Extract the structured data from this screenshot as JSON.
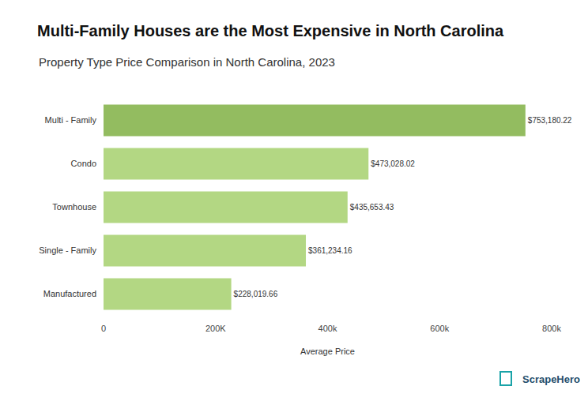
{
  "chart_data": {
    "type": "bar",
    "title": "Multi-Family Houses are the Most Expensive in North Carolina",
    "subtitle": "Property Type Price Comparison in North Carolina, 2023",
    "x_label": "Average Price",
    "brand": "ScrapeHero",
    "orientation": "horizontal",
    "categories": [
      "Multi - Family",
      "Condo",
      "Townhouse",
      "Single - Family",
      "Manufactured"
    ],
    "values": [
      753180.22,
      473028.02,
      435653.43,
      361234.16,
      228019.66
    ],
    "value_labels": [
      "$753,180.22",
      "$473,028.02",
      "$435,653.43",
      "$361,234.16",
      "$228,019.66"
    ],
    "colors": [
      "#93bc60",
      "#b3d783",
      "#b3d783",
      "#b3d783",
      "#b3d783"
    ],
    "data_labels": true,
    "xlim": [
      0,
      800000
    ],
    "xticks": [
      0,
      {
        "value": 200000,
        "label": "200K"
      },
      {
        "value": 400000,
        "label": "400k"
      },
      {
        "value": 600000,
        "label": "600k"
      },
      {
        "value": 800000,
        "label": "800k"
      }
    ],
    "grid": false
  }
}
